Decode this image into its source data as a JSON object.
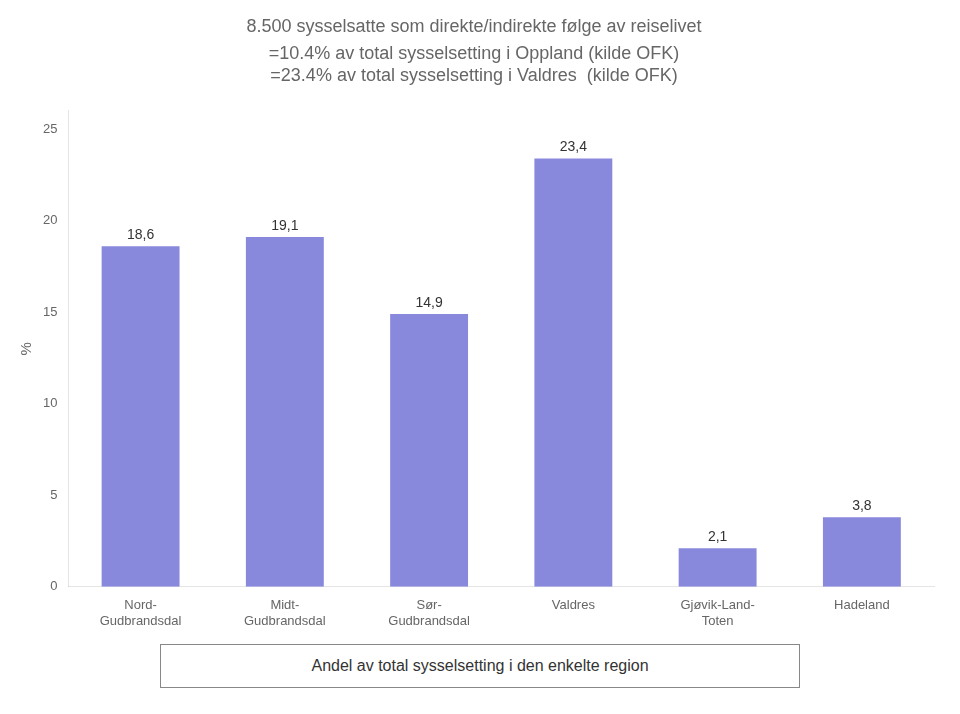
{
  "chart_data": {
    "type": "bar",
    "title": "8.500 sysselsatte som direkte/indirekte følge av reiselivet",
    "subtitle": [
      "=10.4% av total sysselsetting i Oppland (kilde OFK)",
      "=23.4% av total sysselsetting i Valdres  (kilde OFK)"
    ],
    "categories": [
      "Nord-\nGudbrandsdal",
      "Midt-\nGudbrandsdal",
      "Sør-\nGudbrandsdal",
      "Valdres",
      "Gjøvik-Land-\nToten",
      "Hadeland"
    ],
    "values": [
      18.6,
      19.1,
      14.9,
      23.4,
      2.1,
      3.8
    ],
    "value_labels": [
      "18,6",
      "19,1",
      "14,9",
      "23,4",
      "2,1",
      "3,8"
    ],
    "color": "#8888dd",
    "ylabel": "%",
    "ylim": [
      0,
      26
    ],
    "yticks": [
      0,
      5,
      10,
      15,
      20,
      25
    ],
    "grid": false,
    "data_labels": true,
    "annotations": [
      "Andel av total sysselsetting i den enkelte region"
    ]
  }
}
